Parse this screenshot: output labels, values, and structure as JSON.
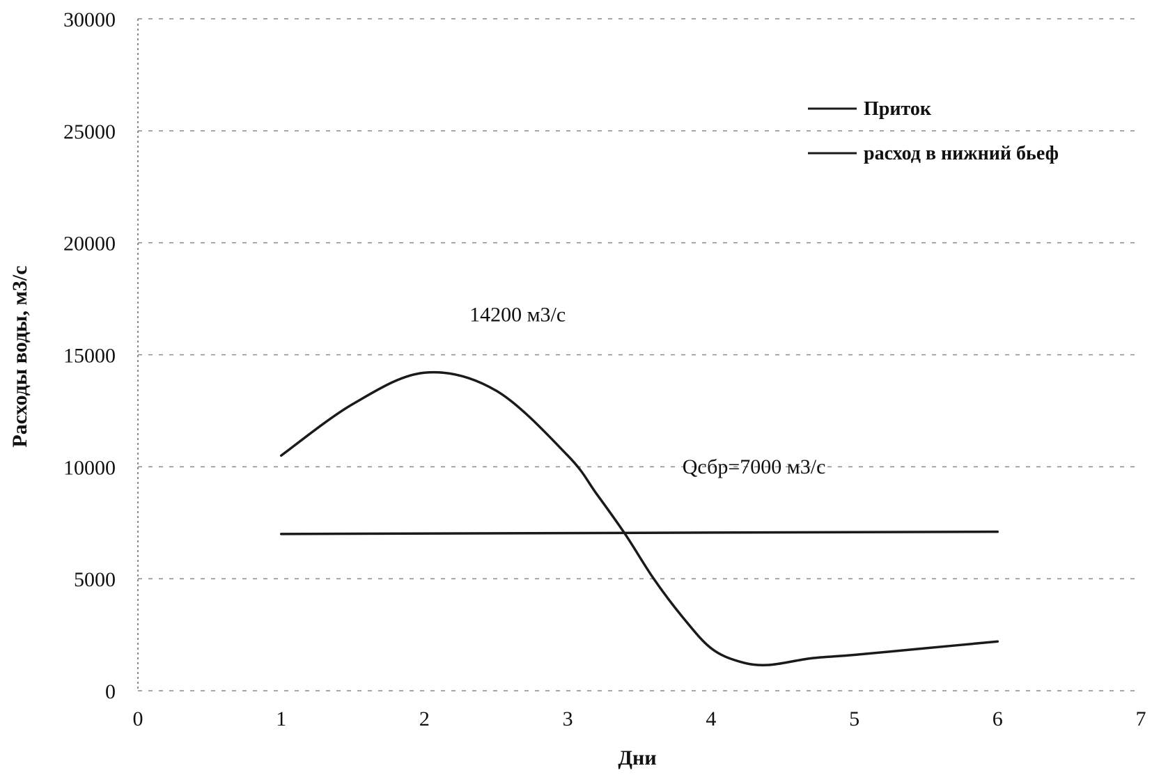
{
  "chart_data": {
    "type": "line",
    "title": "",
    "xlabel": "Дни",
    "ylabel": "Расходы воды, м3/с",
    "xlim": [
      0,
      7
    ],
    "ylim": [
      0,
      30000
    ],
    "x_ticks": [
      0,
      1,
      2,
      3,
      4,
      5,
      6,
      7
    ],
    "y_ticks": [
      0,
      5000,
      10000,
      15000,
      20000,
      25000,
      30000
    ],
    "grid": true,
    "legend_position": "top-right",
    "series": [
      {
        "name": "Приток",
        "color": "#1a1a1a",
        "x": [
          1,
          1.5,
          2,
          2.5,
          3,
          3.2,
          3.4,
          3.6,
          3.8,
          4,
          4.2,
          4.4,
          4.7,
          5,
          5.5,
          6
        ],
        "y": [
          10500,
          12800,
          14200,
          13400,
          10500,
          8800,
          7000,
          5000,
          3300,
          1900,
          1300,
          1150,
          1450,
          1600,
          1900,
          2200
        ]
      },
      {
        "name": "расход в нижний бьеф",
        "color": "#1a1a1a",
        "x": [
          1,
          6
        ],
        "y": [
          7000,
          7100
        ]
      }
    ],
    "annotations": [
      {
        "text": "14200 м3/с",
        "x": 2.65,
        "y": 16500
      },
      {
        "text": "Qсбр=7000 м3/с",
        "x": 4.3,
        "y": 9700
      }
    ]
  }
}
